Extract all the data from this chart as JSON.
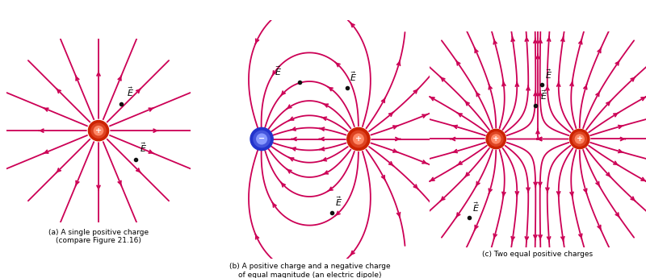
{
  "fig_width": 8.0,
  "fig_height": 3.45,
  "dpi": 100,
  "bg_color": "#ffffff",
  "lc": "#cc0055",
  "dot_color": "#111111",
  "text_color": "#000000",
  "pos_outer": "#cc2200",
  "pos_mid": "#dd4422",
  "pos_inner": "#ff8866",
  "neg_outer": "#2233cc",
  "neg_mid": "#4455dd",
  "neg_inner": "#8899ff",
  "caption_a": "(a) A single positive charge\n(compare Figure 21.16)",
  "caption_b": "(b) A positive charge and a negative charge\nof equal magnitude (an electric dipole)",
  "caption_c": "(c) Two equal positive charges",
  "lw": 1.3,
  "arrowscale": 7
}
